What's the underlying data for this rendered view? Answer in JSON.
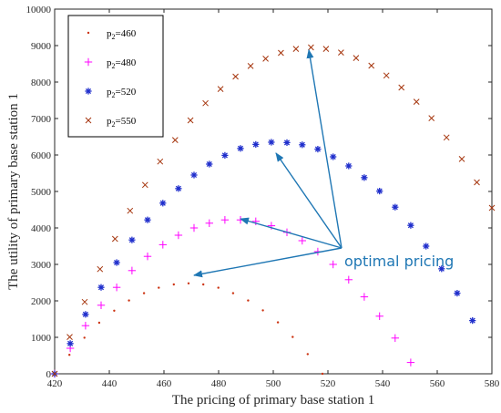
{
  "chart_data": {
    "type": "scatter",
    "xlabel": "The pricing of primary base station 1",
    "ylabel": "The utility of primary base station 1",
    "xlim": [
      420,
      580
    ],
    "ylim": [
      0,
      10000
    ],
    "xticks": [
      "420",
      "440",
      "460",
      "480",
      "500",
      "520",
      "540",
      "560",
      "580"
    ],
    "yticks": [
      "0",
      "1000",
      "2000",
      "3000",
      "4000",
      "5000",
      "6000",
      "7000",
      "8000",
      "9000",
      "10000"
    ],
    "grid": false,
    "legend_position": "top-left",
    "legend_entries": [
      {
        "prefix": "p",
        "sub": "2",
        "suffix": "=460"
      },
      {
        "prefix": "p",
        "sub": "2",
        "suffix": "=480"
      },
      {
        "prefix": "p",
        "sub": "2",
        "suffix": "=520"
      },
      {
        "prefix": "p",
        "sub": "2",
        "suffix": "=550"
      }
    ],
    "series": [
      {
        "marker": "dot",
        "color": "#cc3311",
        "x": [
          420,
          425.4,
          430.9,
          436.3,
          441.8,
          447.2,
          452.7,
          458.1,
          463.6,
          469.0,
          474.4,
          479.9,
          485.3,
          490.8,
          496.2,
          501.7,
          507.1,
          512.6,
          518.0
        ],
        "y": [
          0,
          520,
          990,
          1400,
          1730,
          2010,
          2210,
          2360,
          2450,
          2480,
          2450,
          2360,
          2210,
          2010,
          1740,
          1410,
          1010,
          540,
          0
        ]
      },
      {
        "marker": "plus",
        "color": "#ff00ff",
        "x": [
          420,
          425.7,
          431.3,
          437.0,
          442.7,
          448.3,
          454.0,
          459.6,
          465.3,
          471.0,
          476.6,
          482.3,
          488.0,
          493.6,
          499.3,
          505.0,
          510.6,
          516.3,
          521.9,
          527.6,
          533.3,
          538.9,
          544.6,
          550.3
        ],
        "y": [
          0,
          700,
          1320,
          1880,
          2370,
          2830,
          3220,
          3540,
          3800,
          4000,
          4130,
          4220,
          4220,
          4180,
          4060,
          3880,
          3650,
          3350,
          3000,
          2580,
          2110,
          1580,
          980,
          310
        ]
      },
      {
        "marker": "star",
        "color": "#1f2ecc",
        "x": [
          420,
          425.7,
          431.3,
          437.0,
          442.7,
          448.3,
          454.0,
          459.6,
          465.3,
          471.0,
          476.6,
          482.3,
          488.0,
          493.6,
          499.3,
          505.0,
          510.6,
          516.3,
          521.9,
          527.6,
          533.3,
          538.9,
          544.6,
          550.3,
          555.9,
          561.6,
          567.3,
          572.9
        ],
        "y": [
          0,
          830,
          1630,
          2370,
          3050,
          3670,
          4220,
          4680,
          5080,
          5450,
          5750,
          5990,
          6180,
          6290,
          6350,
          6340,
          6280,
          6160,
          5950,
          5700,
          5380,
          5010,
          4570,
          4070,
          3500,
          2880,
          2210,
          1460
        ]
      },
      {
        "marker": "x",
        "color": "#a5350d",
        "x": [
          420,
          425.5,
          431.0,
          436.6,
          442.1,
          447.6,
          453.1,
          458.6,
          464.1,
          469.7,
          475.2,
          480.7,
          486.2,
          491.7,
          497.2,
          502.8,
          508.3,
          513.8,
          519.3,
          524.8,
          530.3,
          535.9,
          541.4,
          546.9,
          552.4,
          557.9,
          563.4,
          569.0,
          574.5,
          580.0
        ],
        "y": [
          0,
          1010,
          1970,
          2870,
          3700,
          4470,
          5180,
          5820,
          6410,
          6950,
          7420,
          7810,
          8150,
          8440,
          8640,
          8800,
          8910,
          8950,
          8910,
          8810,
          8660,
          8450,
          8180,
          7850,
          7460,
          7010,
          6480,
          5890,
          5250,
          4550
        ]
      }
    ],
    "annotation": {
      "text": "optimal pricing",
      "color": "#1f77b4",
      "source": [
        525,
        3450
      ],
      "targets": [
        [
          471,
          2700
        ],
        [
          488,
          4250
        ],
        [
          501,
          6050
        ],
        [
          513,
          8880
        ]
      ]
    }
  }
}
